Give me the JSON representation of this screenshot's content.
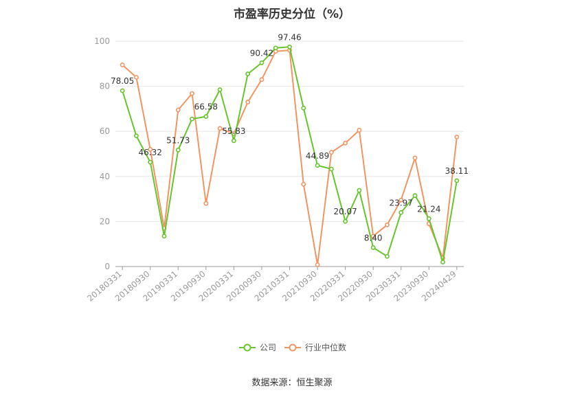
{
  "header": {
    "title": "市盈率历史分位（%）"
  },
  "footer": {
    "source": "数据来源：恒生聚源"
  },
  "colors": {
    "company": "#66c42c",
    "industry": "#f29461",
    "grid": "#e6e6e6",
    "axis": "#999999"
  },
  "chart_data": {
    "type": "line",
    "title": "市盈率历史分位（%）",
    "xlabel": "",
    "ylabel": "",
    "ylim": [
      0,
      100
    ],
    "yticks": [
      0,
      20,
      40,
      60,
      80,
      100
    ],
    "x": [
      "20180331",
      "20180630",
      "20180930",
      "20181231",
      "20190331",
      "20190630",
      "20190930",
      "20191231",
      "20200331",
      "20200630",
      "20200930",
      "20201231",
      "20210331",
      "20210630",
      "20210930",
      "20211231",
      "20220331",
      "20220630",
      "20220930",
      "20221231",
      "20230331",
      "20230630",
      "20230930",
      "20231231",
      "20240429"
    ],
    "x_tick_labels": [
      "20180331",
      "20180930",
      "20190331",
      "20190930",
      "20200331",
      "20200930",
      "20210331",
      "20210930",
      "20220331",
      "20220930",
      "20230331",
      "20230930",
      "20240429"
    ],
    "x_tick_indices": [
      0,
      2,
      4,
      6,
      8,
      10,
      12,
      14,
      16,
      18,
      20,
      22,
      24
    ],
    "legend_position": "bottom-center",
    "grid": true,
    "series": [
      {
        "name": "公司",
        "color": "#66c42c",
        "values": [
          78.05,
          58.0,
          46.32,
          13.5,
          51.73,
          65.5,
          66.58,
          78.5,
          55.83,
          85.5,
          90.42,
          97.0,
          97.46,
          70.3,
          44.89,
          43.3,
          20.07,
          33.8,
          8.4,
          4.5,
          23.97,
          31.5,
          21.24,
          2.0,
          38.11
        ]
      },
      {
        "name": "行业中位数",
        "color": "#f29461",
        "values": [
          89.5,
          84.0,
          52.0,
          17.0,
          69.5,
          76.8,
          28.0,
          61.3,
          59.0,
          73.0,
          83.0,
          95.5,
          96.0,
          36.5,
          0.8,
          50.7,
          54.8,
          60.5,
          13.5,
          18.5,
          29.5,
          48.2,
          19.0,
          3.8,
          57.5
        ]
      }
    ],
    "data_labels": [
      {
        "series": 0,
        "index": 0,
        "text": "78.05"
      },
      {
        "series": 0,
        "index": 2,
        "text": "46.32"
      },
      {
        "series": 0,
        "index": 4,
        "text": "51.73"
      },
      {
        "series": 0,
        "index": 6,
        "text": "66.58"
      },
      {
        "series": 0,
        "index": 8,
        "text": "55.83"
      },
      {
        "series": 0,
        "index": 10,
        "text": "90.42"
      },
      {
        "series": 0,
        "index": 12,
        "text": "97.46"
      },
      {
        "series": 0,
        "index": 14,
        "text": "44.89"
      },
      {
        "series": 0,
        "index": 16,
        "text": "20.07"
      },
      {
        "series": 0,
        "index": 18,
        "text": "8.40"
      },
      {
        "series": 0,
        "index": 20,
        "text": "23.97"
      },
      {
        "series": 0,
        "index": 22,
        "text": "21.24"
      },
      {
        "series": 0,
        "index": 24,
        "text": "38.11"
      }
    ]
  }
}
